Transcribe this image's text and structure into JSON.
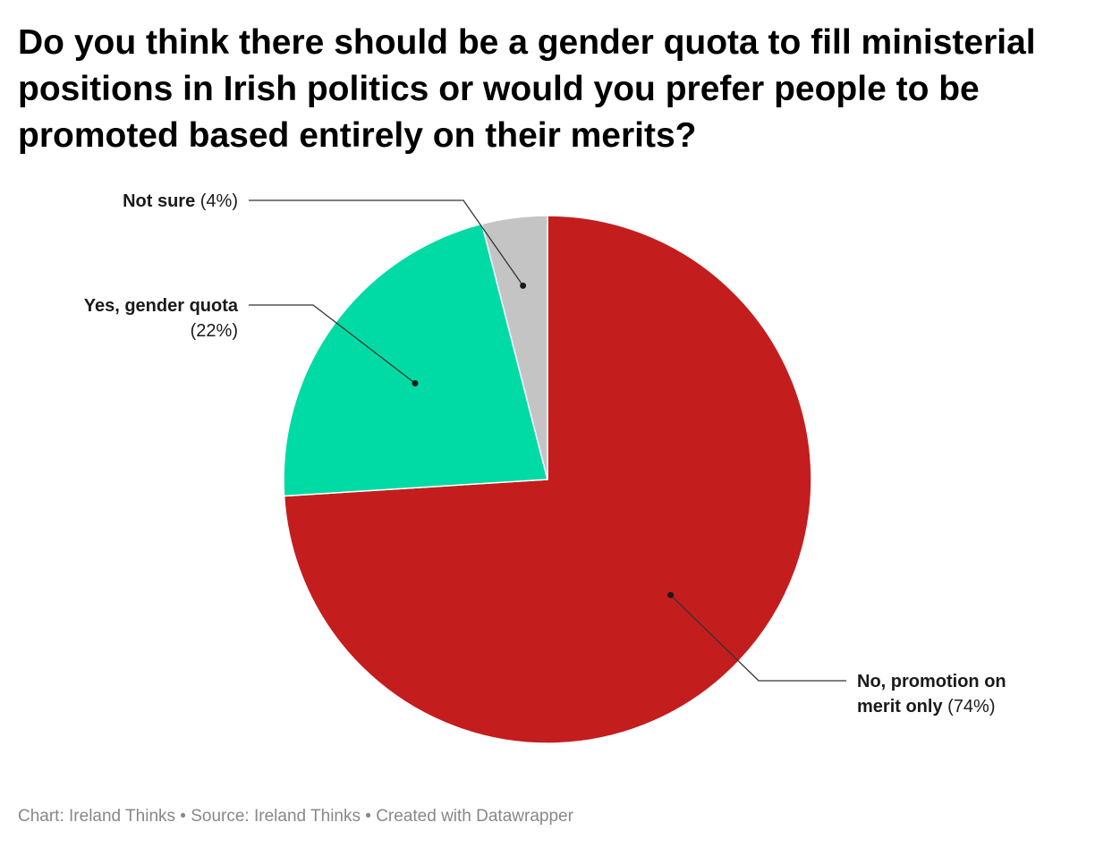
{
  "title": "Do you think there should be a gender quota to fill ministerial positions in Irish politics or would you prefer people to be promoted based entirely on their merits?",
  "footer": {
    "chart_credit": "Chart: Ireland Thinks",
    "separator": " • ",
    "source": "Source: Ireland Thinks",
    "created_with": "Created with Datawrapper"
  },
  "chart_data": {
    "type": "pie",
    "title": "Do you think there should be a gender quota to fill ministerial positions in Irish politics or would you prefer people to be promoted based entirely on their merits?",
    "start": "12 o'clock, clockwise",
    "slices": [
      {
        "label": "No, promotion on merit only",
        "label_lines": [
          "No, promotion on",
          "merit only"
        ],
        "value": 74,
        "value_label": "(74%)",
        "color": "#c41d1e"
      },
      {
        "label": "Yes, gender quota",
        "label_lines": [
          "Yes, gender quota"
        ],
        "value": 22,
        "value_label": "(22%)",
        "color": "#00dba5"
      },
      {
        "label": "Not sure",
        "label_lines": [
          "Not sure"
        ],
        "value": 4,
        "value_label": "(4%)",
        "color": "#c4c4c4"
      }
    ]
  }
}
